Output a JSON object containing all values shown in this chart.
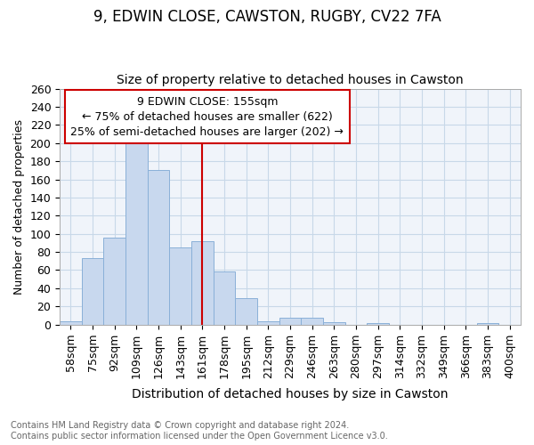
{
  "title": "9, EDWIN CLOSE, CAWSTON, RUGBY, CV22 7FA",
  "subtitle": "Size of property relative to detached houses in Cawston",
  "xlabel": "Distribution of detached houses by size in Cawston",
  "ylabel": "Number of detached properties",
  "categories": [
    "58sqm",
    "75sqm",
    "92sqm",
    "109sqm",
    "126sqm",
    "143sqm",
    "161sqm",
    "178sqm",
    "195sqm",
    "212sqm",
    "229sqm",
    "246sqm",
    "263sqm",
    "280sqm",
    "297sqm",
    "314sqm",
    "332sqm",
    "349sqm",
    "366sqm",
    "383sqm",
    "400sqm"
  ],
  "values": [
    4,
    73,
    96,
    204,
    170,
    85,
    92,
    59,
    29,
    4,
    8,
    8,
    3,
    0,
    2,
    0,
    0,
    0,
    0,
    2,
    0
  ],
  "bar_color": "#c8d8ee",
  "bar_edge_color": "#8ab0d8",
  "vline_x": 6,
  "vline_color": "#cc0000",
  "annotation_line1": "9 EDWIN CLOSE: 155sqm",
  "annotation_line2": "← 75% of detached houses are smaller (622)",
  "annotation_line3": "25% of semi-detached houses are larger (202) →",
  "annotation_box_color": "#ffffff",
  "annotation_box_edge": "#cc0000",
  "ylim": [
    0,
    260
  ],
  "yticks": [
    0,
    20,
    40,
    60,
    80,
    100,
    120,
    140,
    160,
    180,
    200,
    220,
    240,
    260
  ],
  "title_fontsize": 12,
  "subtitle_fontsize": 10,
  "xlabel_fontsize": 10,
  "ylabel_fontsize": 9,
  "tick_fontsize": 9,
  "annotation_fontsize": 9,
  "footer_text": "Contains HM Land Registry data © Crown copyright and database right 2024.\nContains public sector information licensed under the Open Government Licence v3.0.",
  "grid_color": "#c8d8e8",
  "background_color": "#ffffff",
  "plot_bg_color": "#f0f4fa"
}
